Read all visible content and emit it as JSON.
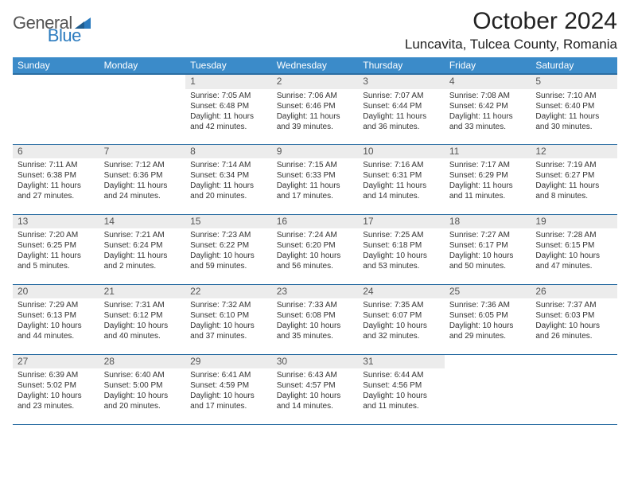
{
  "brand": {
    "text1": "General",
    "text2": "Blue"
  },
  "title": "October 2024",
  "location": "Luncavita, Tulcea County, Romania",
  "colors": {
    "header_bg": "#3b8bc9",
    "header_border": "#2b6ea3",
    "row_border": "#2b6ea3",
    "daynum_bg": "#ececec",
    "brand_gray": "#555555",
    "brand_blue": "#2b7bbf"
  },
  "weekdays": [
    "Sunday",
    "Monday",
    "Tuesday",
    "Wednesday",
    "Thursday",
    "Friday",
    "Saturday"
  ],
  "weeks": [
    [
      {
        "n": "",
        "sr": "",
        "ss": "",
        "dl": ""
      },
      {
        "n": "",
        "sr": "",
        "ss": "",
        "dl": ""
      },
      {
        "n": "1",
        "sr": "Sunrise: 7:05 AM",
        "ss": "Sunset: 6:48 PM",
        "dl": "Daylight: 11 hours and 42 minutes."
      },
      {
        "n": "2",
        "sr": "Sunrise: 7:06 AM",
        "ss": "Sunset: 6:46 PM",
        "dl": "Daylight: 11 hours and 39 minutes."
      },
      {
        "n": "3",
        "sr": "Sunrise: 7:07 AM",
        "ss": "Sunset: 6:44 PM",
        "dl": "Daylight: 11 hours and 36 minutes."
      },
      {
        "n": "4",
        "sr": "Sunrise: 7:08 AM",
        "ss": "Sunset: 6:42 PM",
        "dl": "Daylight: 11 hours and 33 minutes."
      },
      {
        "n": "5",
        "sr": "Sunrise: 7:10 AM",
        "ss": "Sunset: 6:40 PM",
        "dl": "Daylight: 11 hours and 30 minutes."
      }
    ],
    [
      {
        "n": "6",
        "sr": "Sunrise: 7:11 AM",
        "ss": "Sunset: 6:38 PM",
        "dl": "Daylight: 11 hours and 27 minutes."
      },
      {
        "n": "7",
        "sr": "Sunrise: 7:12 AM",
        "ss": "Sunset: 6:36 PM",
        "dl": "Daylight: 11 hours and 24 minutes."
      },
      {
        "n": "8",
        "sr": "Sunrise: 7:14 AM",
        "ss": "Sunset: 6:34 PM",
        "dl": "Daylight: 11 hours and 20 minutes."
      },
      {
        "n": "9",
        "sr": "Sunrise: 7:15 AM",
        "ss": "Sunset: 6:33 PM",
        "dl": "Daylight: 11 hours and 17 minutes."
      },
      {
        "n": "10",
        "sr": "Sunrise: 7:16 AM",
        "ss": "Sunset: 6:31 PM",
        "dl": "Daylight: 11 hours and 14 minutes."
      },
      {
        "n": "11",
        "sr": "Sunrise: 7:17 AM",
        "ss": "Sunset: 6:29 PM",
        "dl": "Daylight: 11 hours and 11 minutes."
      },
      {
        "n": "12",
        "sr": "Sunrise: 7:19 AM",
        "ss": "Sunset: 6:27 PM",
        "dl": "Daylight: 11 hours and 8 minutes."
      }
    ],
    [
      {
        "n": "13",
        "sr": "Sunrise: 7:20 AM",
        "ss": "Sunset: 6:25 PM",
        "dl": "Daylight: 11 hours and 5 minutes."
      },
      {
        "n": "14",
        "sr": "Sunrise: 7:21 AM",
        "ss": "Sunset: 6:24 PM",
        "dl": "Daylight: 11 hours and 2 minutes."
      },
      {
        "n": "15",
        "sr": "Sunrise: 7:23 AM",
        "ss": "Sunset: 6:22 PM",
        "dl": "Daylight: 10 hours and 59 minutes."
      },
      {
        "n": "16",
        "sr": "Sunrise: 7:24 AM",
        "ss": "Sunset: 6:20 PM",
        "dl": "Daylight: 10 hours and 56 minutes."
      },
      {
        "n": "17",
        "sr": "Sunrise: 7:25 AM",
        "ss": "Sunset: 6:18 PM",
        "dl": "Daylight: 10 hours and 53 minutes."
      },
      {
        "n": "18",
        "sr": "Sunrise: 7:27 AM",
        "ss": "Sunset: 6:17 PM",
        "dl": "Daylight: 10 hours and 50 minutes."
      },
      {
        "n": "19",
        "sr": "Sunrise: 7:28 AM",
        "ss": "Sunset: 6:15 PM",
        "dl": "Daylight: 10 hours and 47 minutes."
      }
    ],
    [
      {
        "n": "20",
        "sr": "Sunrise: 7:29 AM",
        "ss": "Sunset: 6:13 PM",
        "dl": "Daylight: 10 hours and 44 minutes."
      },
      {
        "n": "21",
        "sr": "Sunrise: 7:31 AM",
        "ss": "Sunset: 6:12 PM",
        "dl": "Daylight: 10 hours and 40 minutes."
      },
      {
        "n": "22",
        "sr": "Sunrise: 7:32 AM",
        "ss": "Sunset: 6:10 PM",
        "dl": "Daylight: 10 hours and 37 minutes."
      },
      {
        "n": "23",
        "sr": "Sunrise: 7:33 AM",
        "ss": "Sunset: 6:08 PM",
        "dl": "Daylight: 10 hours and 35 minutes."
      },
      {
        "n": "24",
        "sr": "Sunrise: 7:35 AM",
        "ss": "Sunset: 6:07 PM",
        "dl": "Daylight: 10 hours and 32 minutes."
      },
      {
        "n": "25",
        "sr": "Sunrise: 7:36 AM",
        "ss": "Sunset: 6:05 PM",
        "dl": "Daylight: 10 hours and 29 minutes."
      },
      {
        "n": "26",
        "sr": "Sunrise: 7:37 AM",
        "ss": "Sunset: 6:03 PM",
        "dl": "Daylight: 10 hours and 26 minutes."
      }
    ],
    [
      {
        "n": "27",
        "sr": "Sunrise: 6:39 AM",
        "ss": "Sunset: 5:02 PM",
        "dl": "Daylight: 10 hours and 23 minutes."
      },
      {
        "n": "28",
        "sr": "Sunrise: 6:40 AM",
        "ss": "Sunset: 5:00 PM",
        "dl": "Daylight: 10 hours and 20 minutes."
      },
      {
        "n": "29",
        "sr": "Sunrise: 6:41 AM",
        "ss": "Sunset: 4:59 PM",
        "dl": "Daylight: 10 hours and 17 minutes."
      },
      {
        "n": "30",
        "sr": "Sunrise: 6:43 AM",
        "ss": "Sunset: 4:57 PM",
        "dl": "Daylight: 10 hours and 14 minutes."
      },
      {
        "n": "31",
        "sr": "Sunrise: 6:44 AM",
        "ss": "Sunset: 4:56 PM",
        "dl": "Daylight: 10 hours and 11 minutes."
      },
      {
        "n": "",
        "sr": "",
        "ss": "",
        "dl": ""
      },
      {
        "n": "",
        "sr": "",
        "ss": "",
        "dl": ""
      }
    ]
  ]
}
